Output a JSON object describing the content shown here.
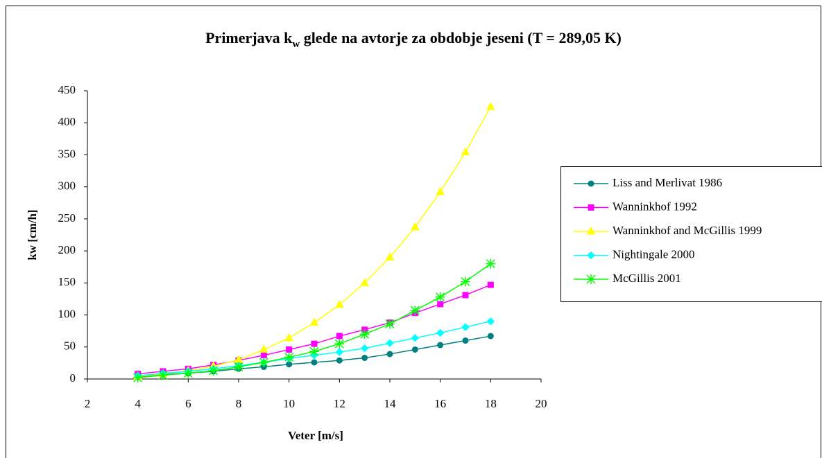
{
  "chart_data": {
    "type": "line",
    "title": [
      "Primerjava k",
      "w",
      " glede na avtorje za obdobje jeseni (T = 289,05 K)"
    ],
    "x_label": "Veter [m/s]",
    "y_label": "kw [cm/h]",
    "x": [
      4,
      5,
      6,
      7,
      8,
      9,
      10,
      11,
      12,
      13,
      14,
      15,
      16,
      17,
      18
    ],
    "xlim": [
      2,
      20
    ],
    "xticks": [
      2,
      4,
      6,
      8,
      10,
      12,
      14,
      16,
      18,
      20
    ],
    "ylim": [
      0,
      450
    ],
    "yticks": [
      0,
      50,
      100,
      150,
      200,
      250,
      300,
      350,
      400,
      450
    ],
    "grid": false,
    "legend": "right",
    "series": [
      {
        "name": "Liss and Merlivat 1986",
        "color": "#008080",
        "marker": "circle",
        "values": [
          3,
          7,
          9,
          12,
          16,
          19,
          23,
          26,
          29,
          33,
          39,
          46,
          53,
          60,
          67
        ]
      },
      {
        "name": "Wanninkhof 1992",
        "color": "#ff00ff",
        "marker": "square",
        "values": [
          8,
          12,
          16,
          22,
          29,
          37,
          46,
          55,
          67,
          77,
          88,
          103,
          117,
          131,
          147
        ]
      },
      {
        "name": "Wanninkhof and McGillis 1999",
        "color": "#ffff00",
        "marker": "triangle",
        "values": [
          4,
          8,
          13,
          20,
          30,
          46,
          64,
          88,
          116,
          150,
          190,
          237,
          292,
          354,
          425
        ]
      },
      {
        "name": "Nightingale 2000",
        "color": "#00ffff",
        "marker": "diamond",
        "values": [
          5,
          9,
          12,
          16,
          21,
          26,
          32,
          37,
          42,
          48,
          56,
          64,
          72,
          81,
          90
        ]
      },
      {
        "name": "McGillis 2001",
        "color": "#00ff00",
        "marker": "star",
        "values": [
          2,
          6,
          9,
          13,
          19,
          26,
          34,
          43,
          55,
          70,
          86,
          107,
          128,
          152,
          180
        ]
      }
    ]
  }
}
